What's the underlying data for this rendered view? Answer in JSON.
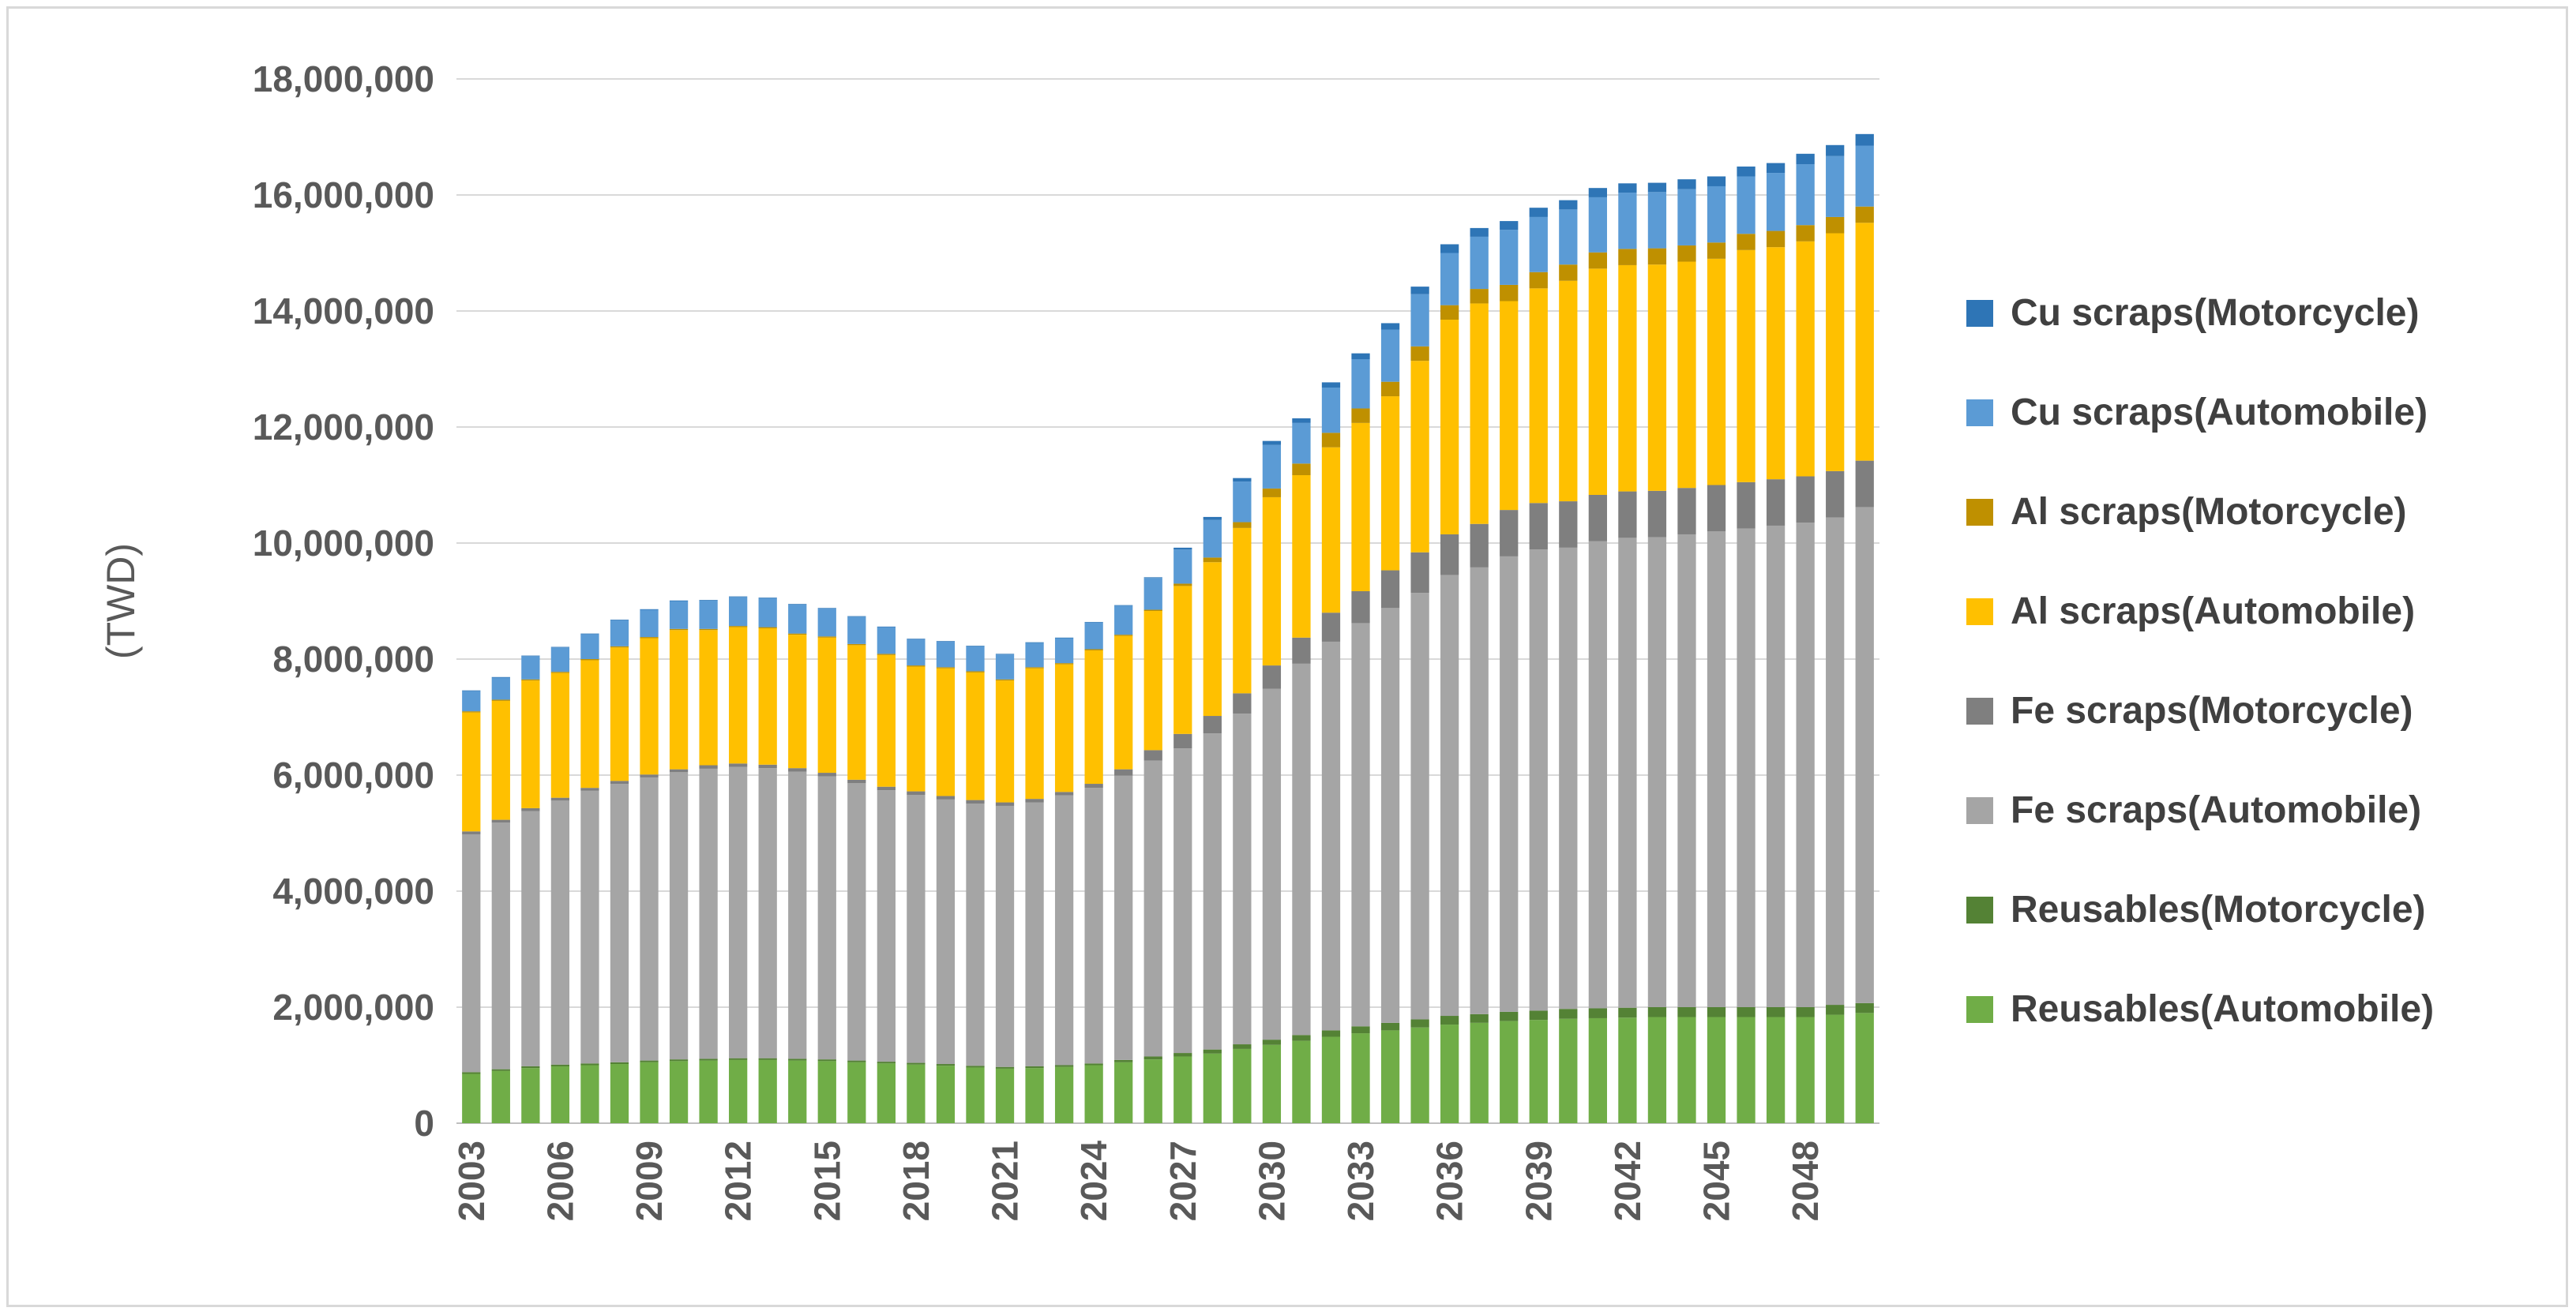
{
  "chart_data": {
    "type": "bar",
    "stacked": true,
    "title": "",
    "xlabel": "",
    "ylabel": "(TWD)",
    "ylim": [
      0,
      18000000
    ],
    "ytick_labels": [
      "0",
      "2,000,000",
      "4,000,000",
      "6,000,000",
      "8,000,000",
      "10,000,000",
      "12,000,000",
      "14,000,000",
      "16,000,000",
      "18,000,000"
    ],
    "xtick_labels": [
      "2003",
      "2006",
      "2009",
      "2012",
      "2015",
      "2018",
      "2021",
      "2024",
      "2027",
      "2030",
      "2033",
      "2036",
      "2039",
      "2042",
      "2045",
      "2048"
    ],
    "gridlines": true,
    "legend_position": "right",
    "categories": [
      "2003",
      "2004",
      "2005",
      "2006",
      "2007",
      "2008",
      "2009",
      "2010",
      "2011",
      "2012",
      "2013",
      "2014",
      "2015",
      "2016",
      "2017",
      "2018",
      "2019",
      "2020",
      "2021",
      "2022",
      "2023",
      "2024",
      "2025",
      "2026",
      "2027",
      "2028",
      "2029",
      "2030",
      "2031",
      "2032",
      "2033",
      "2034",
      "2035",
      "2036",
      "2037",
      "2038",
      "2039",
      "2040",
      "2041",
      "2042",
      "2043",
      "2044",
      "2045",
      "2046",
      "2047",
      "2048",
      "2049",
      "2050"
    ],
    "series": [
      {
        "name": "Reusables(Automobile)",
        "color": "#70ad47",
        "values": [
          850000,
          900000,
          950000,
          980000,
          1000000,
          1020000,
          1050000,
          1070000,
          1080000,
          1090000,
          1090000,
          1080000,
          1070000,
          1050000,
          1030000,
          1010000,
          990000,
          960000,
          940000,
          950000,
          970000,
          1000000,
          1050000,
          1100000,
          1150000,
          1200000,
          1280000,
          1350000,
          1420000,
          1490000,
          1550000,
          1600000,
          1650000,
          1700000,
          1730000,
          1760000,
          1780000,
          1800000,
          1810000,
          1820000,
          1830000,
          1830000,
          1830000,
          1830000,
          1830000,
          1830000,
          1870000,
          1900000
        ]
      },
      {
        "name": "Reusables(Motorcycle)",
        "color": "#548235",
        "values": [
          30000,
          30000,
          30000,
          30000,
          30000,
          30000,
          30000,
          30000,
          30000,
          30000,
          30000,
          30000,
          30000,
          30000,
          30000,
          30000,
          30000,
          30000,
          30000,
          30000,
          30000,
          30000,
          40000,
          50000,
          60000,
          70000,
          80000,
          90000,
          100000,
          110000,
          120000,
          130000,
          140000,
          150000,
          150000,
          160000,
          160000,
          170000,
          170000,
          170000,
          170000,
          170000,
          170000,
          170000,
          170000,
          170000,
          170000,
          170000
        ]
      },
      {
        "name": "Fe scraps(Automobile)",
        "color": "#a5a5a5",
        "values": [
          4100000,
          4250000,
          4400000,
          4550000,
          4700000,
          4800000,
          4880000,
          4950000,
          5000000,
          5020000,
          5000000,
          4950000,
          4880000,
          4780000,
          4680000,
          4620000,
          4560000,
          4520000,
          4500000,
          4550000,
          4650000,
          4750000,
          4900000,
          5100000,
          5250000,
          5450000,
          5700000,
          6050000,
          6400000,
          6700000,
          6950000,
          7150000,
          7350000,
          7600000,
          7700000,
          7850000,
          7950000,
          7950000,
          8050000,
          8100000,
          8100000,
          8150000,
          8200000,
          8250000,
          8300000,
          8350000,
          8400000,
          8550000
        ]
      },
      {
        "name": "Fe scraps(Motorcycle)",
        "color": "#7f7f7f",
        "values": [
          50000,
          50000,
          50000,
          50000,
          50000,
          50000,
          50000,
          50000,
          60000,
          60000,
          60000,
          60000,
          60000,
          60000,
          60000,
          60000,
          60000,
          60000,
          60000,
          60000,
          60000,
          70000,
          110000,
          180000,
          250000,
          300000,
          350000,
          400000,
          450000,
          500000,
          550000,
          650000,
          700000,
          700000,
          750000,
          800000,
          800000,
          800000,
          800000,
          800000,
          800000,
          800000,
          800000,
          800000,
          800000,
          800000,
          800000,
          800000
        ]
      },
      {
        "name": "Al scraps(Automobile)",
        "color": "#ffc000",
        "values": [
          2050000,
          2050000,
          2200000,
          2150000,
          2200000,
          2300000,
          2350000,
          2400000,
          2330000,
          2350000,
          2350000,
          2300000,
          2330000,
          2320000,
          2270000,
          2150000,
          2200000,
          2200000,
          2100000,
          2250000,
          2200000,
          2300000,
          2300000,
          2400000,
          2550000,
          2650000,
          2850000,
          2900000,
          2800000,
          2850000,
          2900000,
          3000000,
          3300000,
          3700000,
          3800000,
          3600000,
          3700000,
          3800000,
          3900000,
          3900000,
          3900000,
          3900000,
          3900000,
          4000000,
          4000000,
          4050000,
          4100000,
          4100000
        ]
      },
      {
        "name": "Al scraps(Motorcycle)",
        "color": "#bf9000",
        "values": [
          20000,
          20000,
          20000,
          20000,
          20000,
          20000,
          20000,
          20000,
          20000,
          20000,
          20000,
          20000,
          20000,
          20000,
          20000,
          20000,
          20000,
          20000,
          20000,
          20000,
          20000,
          20000,
          20000,
          20000,
          40000,
          80000,
          100000,
          150000,
          200000,
          250000,
          250000,
          250000,
          250000,
          250000,
          250000,
          280000,
          280000,
          280000,
          280000,
          280000,
          280000,
          280000,
          280000,
          280000,
          280000,
          280000,
          280000,
          280000
        ]
      },
      {
        "name": "Cu scraps(Automobile)",
        "color": "#5b9bd5",
        "values": [
          350000,
          380000,
          400000,
          420000,
          430000,
          450000,
          470000,
          480000,
          490000,
          500000,
          500000,
          500000,
          480000,
          470000,
          460000,
          450000,
          440000,
          430000,
          430000,
          420000,
          430000,
          460000,
          500000,
          550000,
          590000,
          650000,
          700000,
          750000,
          700000,
          780000,
          850000,
          900000,
          900000,
          900000,
          900000,
          950000,
          950000,
          950000,
          950000,
          970000,
          970000,
          970000,
          970000,
          990000,
          1000000,
          1050000,
          1050000,
          1050000
        ]
      },
      {
        "name": "Cu scraps(Motorcycle)",
        "color": "#2e75b6",
        "values": [
          10000,
          10000,
          10000,
          10000,
          10000,
          10000,
          10000,
          10000,
          10000,
          10000,
          10000,
          10000,
          10000,
          10000,
          10000,
          10000,
          10000,
          10000,
          10000,
          10000,
          10000,
          10000,
          10000,
          10000,
          30000,
          50000,
          60000,
          70000,
          80000,
          90000,
          100000,
          110000,
          130000,
          150000,
          150000,
          150000,
          160000,
          160000,
          160000,
          160000,
          160000,
          170000,
          170000,
          170000,
          170000,
          180000,
          190000,
          200000
        ]
      }
    ]
  }
}
